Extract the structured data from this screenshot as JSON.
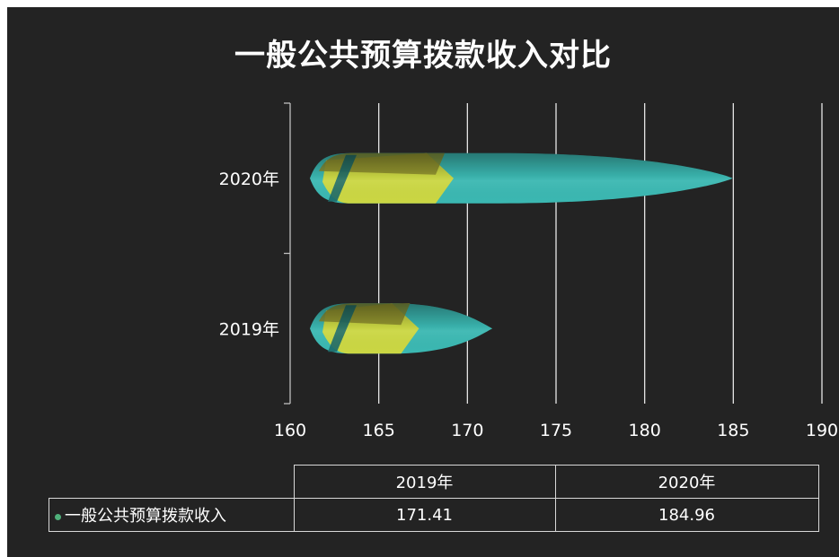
{
  "chart_data": {
    "type": "bar",
    "orientation": "horizontal",
    "title": "一般公共预算拨款收入对比",
    "categories": [
      "2019年",
      "2020年"
    ],
    "series": [
      {
        "name": "一般公共预算拨款收入",
        "values": [
          171.41,
          184.96
        ]
      }
    ],
    "x_ticks": [
      "160",
      "165",
      "170",
      "175",
      "180",
      "185",
      "190"
    ],
    "xlim": [
      160,
      190
    ],
    "grid": true,
    "legend": "data-table-bottom",
    "colors": {
      "teal": "#3bb8b2",
      "yellow": "#d8d93a",
      "olive": "#8a8a2c",
      "background": "#232323",
      "grid": "#e6e6e6"
    }
  },
  "data_table": {
    "headers": [
      "2019年",
      "2020年"
    ],
    "row_label": "一般公共预算拨款收入",
    "values": [
      "171.41",
      "184.96"
    ]
  }
}
